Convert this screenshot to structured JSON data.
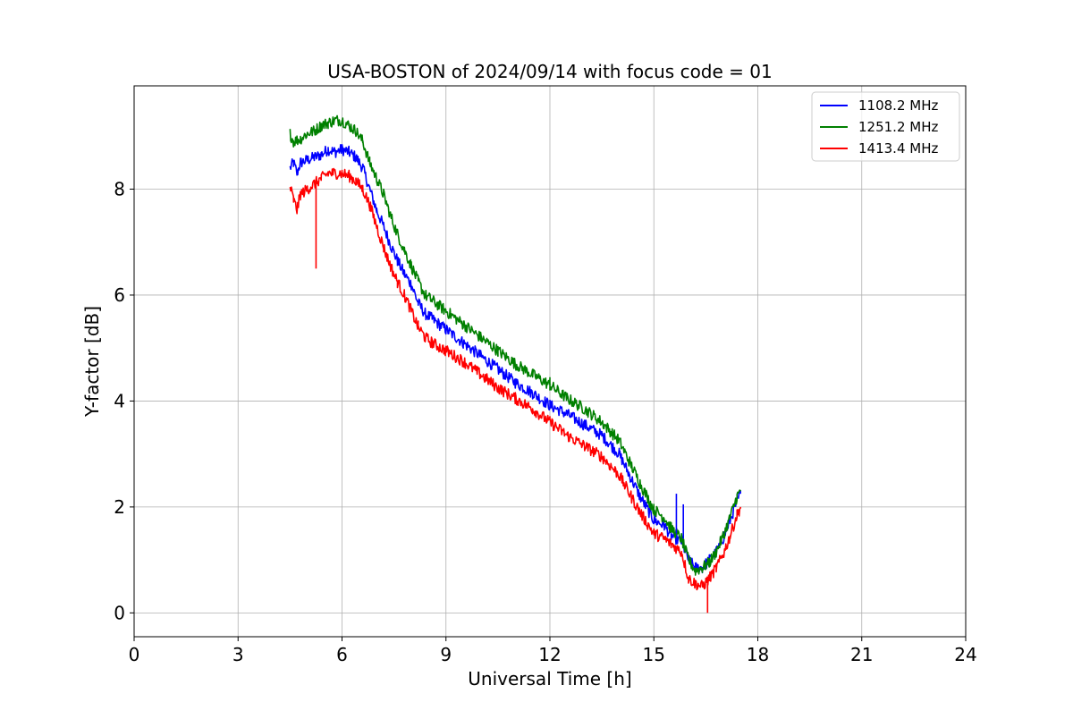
{
  "chart_data": {
    "type": "line",
    "title": "USA-BOSTON of 2024/09/14 with focus code = 01",
    "xlabel": "Universal Time [h]",
    "ylabel": "Y-factor [dB]",
    "xlim": [
      0,
      24
    ],
    "ylim": [
      -0.45,
      9.95
    ],
    "x_ticks": [
      0,
      3,
      6,
      9,
      12,
      15,
      18,
      21,
      24
    ],
    "y_ticks": [
      0,
      2,
      4,
      6,
      8
    ],
    "grid": true,
    "legend_position": "top-right",
    "series": [
      {
        "name": "1108.2 MHz",
        "color": "#0000ff",
        "points": [
          [
            4.5,
            8.4
          ],
          [
            4.6,
            8.5
          ],
          [
            4.7,
            8.3
          ],
          [
            4.8,
            8.5
          ],
          [
            5.0,
            8.55
          ],
          [
            5.2,
            8.6
          ],
          [
            5.4,
            8.65
          ],
          [
            5.6,
            8.75
          ],
          [
            5.8,
            8.7
          ],
          [
            6.0,
            8.75
          ],
          [
            6.2,
            8.7
          ],
          [
            6.4,
            8.6
          ],
          [
            6.6,
            8.4
          ],
          [
            6.8,
            8.0
          ],
          [
            7.0,
            7.6
          ],
          [
            7.2,
            7.3
          ],
          [
            7.4,
            6.95
          ],
          [
            7.6,
            6.65
          ],
          [
            7.8,
            6.4
          ],
          [
            8.0,
            6.2
          ],
          [
            8.2,
            5.85
          ],
          [
            8.4,
            5.65
          ],
          [
            8.6,
            5.55
          ],
          [
            9.0,
            5.35
          ],
          [
            9.5,
            5.1
          ],
          [
            10.0,
            4.85
          ],
          [
            10.5,
            4.6
          ],
          [
            11.0,
            4.35
          ],
          [
            11.5,
            4.15
          ],
          [
            12.0,
            3.92
          ],
          [
            12.5,
            3.75
          ],
          [
            13.0,
            3.55
          ],
          [
            13.5,
            3.35
          ],
          [
            14.0,
            3.0
          ],
          [
            14.3,
            2.6
          ],
          [
            14.6,
            2.2
          ],
          [
            15.0,
            1.75
          ],
          [
            15.3,
            1.65
          ],
          [
            15.5,
            1.45
          ],
          [
            15.8,
            1.35
          ],
          [
            16.0,
            1.0
          ],
          [
            16.2,
            0.85
          ],
          [
            16.4,
            0.85
          ],
          [
            16.6,
            1.0
          ],
          [
            16.8,
            1.15
          ],
          [
            17.0,
            1.4
          ],
          [
            17.2,
            1.75
          ],
          [
            17.4,
            2.1
          ],
          [
            17.5,
            2.25
          ]
        ]
      },
      {
        "name": "1251.2 MHz",
        "color": "#008000",
        "points": [
          [
            4.5,
            9.05
          ],
          [
            4.6,
            8.9
          ],
          [
            4.8,
            8.95
          ],
          [
            5.0,
            9.05
          ],
          [
            5.2,
            9.1
          ],
          [
            5.4,
            9.2
          ],
          [
            5.6,
            9.25
          ],
          [
            5.8,
            9.3
          ],
          [
            6.0,
            9.3
          ],
          [
            6.2,
            9.2
          ],
          [
            6.4,
            9.1
          ],
          [
            6.6,
            8.9
          ],
          [
            6.8,
            8.5
          ],
          [
            7.0,
            8.2
          ],
          [
            7.2,
            7.9
          ],
          [
            7.4,
            7.5
          ],
          [
            7.6,
            7.15
          ],
          [
            7.8,
            6.85
          ],
          [
            8.0,
            6.55
          ],
          [
            8.2,
            6.25
          ],
          [
            8.4,
            6.0
          ],
          [
            8.6,
            5.9
          ],
          [
            9.0,
            5.7
          ],
          [
            9.5,
            5.45
          ],
          [
            10.0,
            5.2
          ],
          [
            10.5,
            4.95
          ],
          [
            11.0,
            4.7
          ],
          [
            11.5,
            4.5
          ],
          [
            12.0,
            4.3
          ],
          [
            12.5,
            4.05
          ],
          [
            13.0,
            3.85
          ],
          [
            13.5,
            3.6
          ],
          [
            14.0,
            3.25
          ],
          [
            14.3,
            2.85
          ],
          [
            14.6,
            2.45
          ],
          [
            15.0,
            1.95
          ],
          [
            15.3,
            1.8
          ],
          [
            15.5,
            1.6
          ],
          [
            15.8,
            1.4
          ],
          [
            16.0,
            1.0
          ],
          [
            16.2,
            0.8
          ],
          [
            16.4,
            0.85
          ],
          [
            16.6,
            0.95
          ],
          [
            16.8,
            1.15
          ],
          [
            17.0,
            1.45
          ],
          [
            17.2,
            1.8
          ],
          [
            17.4,
            2.2
          ],
          [
            17.5,
            2.3
          ]
        ]
      },
      {
        "name": "1413.4 MHz",
        "color": "#ff0000",
        "points": [
          [
            4.5,
            8.05
          ],
          [
            4.6,
            7.8
          ],
          [
            4.7,
            7.6
          ],
          [
            4.8,
            7.9
          ],
          [
            5.0,
            8.0
          ],
          [
            5.2,
            8.1
          ],
          [
            5.4,
            8.2
          ],
          [
            5.6,
            8.3
          ],
          [
            5.8,
            8.3
          ],
          [
            6.0,
            8.3
          ],
          [
            6.2,
            8.25
          ],
          [
            6.4,
            8.15
          ],
          [
            6.6,
            8.0
          ],
          [
            6.8,
            7.7
          ],
          [
            7.0,
            7.3
          ],
          [
            7.2,
            6.9
          ],
          [
            7.4,
            6.55
          ],
          [
            7.6,
            6.25
          ],
          [
            7.8,
            6.0
          ],
          [
            8.0,
            5.7
          ],
          [
            8.2,
            5.4
          ],
          [
            8.4,
            5.2
          ],
          [
            8.6,
            5.1
          ],
          [
            9.0,
            4.95
          ],
          [
            9.5,
            4.75
          ],
          [
            10.0,
            4.5
          ],
          [
            10.5,
            4.25
          ],
          [
            11.0,
            4.05
          ],
          [
            11.5,
            3.85
          ],
          [
            12.0,
            3.6
          ],
          [
            12.5,
            3.35
          ],
          [
            13.0,
            3.15
          ],
          [
            13.5,
            2.95
          ],
          [
            14.0,
            2.6
          ],
          [
            14.3,
            2.25
          ],
          [
            14.6,
            1.9
          ],
          [
            15.0,
            1.5
          ],
          [
            15.3,
            1.4
          ],
          [
            15.5,
            1.3
          ],
          [
            15.8,
            1.15
          ],
          [
            16.0,
            0.65
          ],
          [
            16.2,
            0.55
          ],
          [
            16.4,
            0.5
          ],
          [
            16.6,
            0.65
          ],
          [
            16.8,
            0.85
          ],
          [
            17.0,
            1.1
          ],
          [
            17.2,
            1.45
          ],
          [
            17.4,
            1.85
          ],
          [
            17.5,
            2.0
          ]
        ]
      }
    ],
    "spikes": [
      {
        "series": 2,
        "x": 5.25,
        "y_from": 8.1,
        "y_to": 6.5
      },
      {
        "series": 2,
        "x": 16.55,
        "y_from": 0.6,
        "y_to": 0.0
      },
      {
        "series": 0,
        "x": 15.65,
        "y_from": 1.5,
        "y_to": 2.25
      },
      {
        "series": 0,
        "x": 15.85,
        "y_from": 1.4,
        "y_to": 2.05
      },
      {
        "series": 1,
        "x": 12.0,
        "y_from": 4.3,
        "y_to": 4.45
      }
    ]
  }
}
